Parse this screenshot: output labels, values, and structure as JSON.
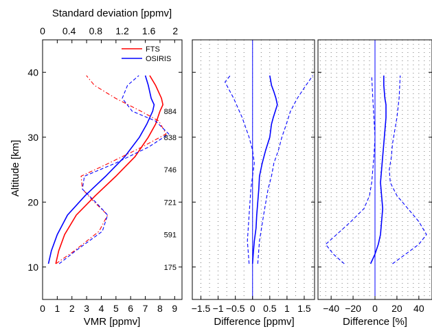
{
  "chart_data": [
    {
      "type": "line",
      "panel": "vmr",
      "xlabel": "VMR [ppmv]",
      "ylabel": "Altitude [km]",
      "top_xlabel": "Standard deviation [ppmv]",
      "xlim": [
        0,
        9.5
      ],
      "top_xlim": [
        0,
        2.1
      ],
      "ylim": [
        5,
        45
      ],
      "xticks": [
        "0",
        "1",
        "2",
        "3",
        "4",
        "5",
        "6",
        "7",
        "8",
        "9"
      ],
      "top_xticks": [
        "0",
        "0.4",
        "0.8",
        "1.2",
        "1.6",
        "2"
      ],
      "yticks": [
        "10",
        "20",
        "30",
        "40"
      ],
      "legend": {
        "placement": "top-right",
        "entries": [
          "FTS",
          "OSIRIS"
        ]
      },
      "series": [
        {
          "name": "FTS",
          "color": "#ff0000",
          "style": "solid",
          "axis": "bottom",
          "x": [
            0.9,
            1.1,
            1.5,
            2.3,
            3.6,
            5.0,
            6.3,
            7.2,
            7.7,
            8.0,
            8.2,
            8.1,
            7.7,
            7.3
          ],
          "y": [
            10.5,
            12.5,
            15,
            18,
            21,
            24,
            27,
            30,
            32,
            34,
            35,
            36,
            38,
            39.5
          ]
        },
        {
          "name": "OSIRIS",
          "color": "#0000ff",
          "style": "solid",
          "axis": "bottom",
          "x": [
            0.4,
            0.6,
            1.0,
            1.7,
            2.9,
            4.3,
            5.6,
            6.6,
            7.1,
            7.5,
            7.6,
            7.4,
            7.2,
            7.0
          ],
          "y": [
            10.5,
            12.5,
            15,
            18,
            21,
            24,
            27,
            30,
            32,
            34,
            35,
            36,
            38,
            39.5
          ]
        },
        {
          "name": "FTS",
          "color": "#ff0000",
          "style": "dashdot",
          "axis": "top",
          "x": [
            0.2,
            0.48,
            0.85,
            0.98,
            0.78,
            0.6,
            0.58,
            1.0,
            1.5,
            1.86,
            1.75,
            1.48,
            1.1,
            0.78,
            0.66
          ],
          "y": [
            10.5,
            12.5,
            15.5,
            18,
            20,
            22,
            24,
            26,
            28.5,
            30.5,
            32.5,
            34,
            36,
            38,
            39.5
          ]
        },
        {
          "name": "OSIRIS",
          "color": "#0000ff",
          "style": "dashed",
          "axis": "top",
          "x": [
            0.25,
            0.5,
            0.9,
            0.98,
            0.8,
            0.6,
            0.63,
            1.1,
            1.6,
            1.9,
            1.7,
            1.35,
            1.2,
            1.28,
            1.45
          ],
          "y": [
            10.5,
            12.5,
            15.5,
            18,
            20,
            22,
            24,
            26,
            28.5,
            30.5,
            32.5,
            34,
            36,
            38,
            39.5
          ]
        }
      ]
    },
    {
      "type": "line",
      "panel": "difference-ppmv",
      "xlabel": "Difference [ppmv]",
      "xlim": [
        -1.75,
        1.8
      ],
      "ylim": [
        5,
        45
      ],
      "xticks": [
        "−1.5",
        "−1",
        "−0.5",
        "0",
        "0.5",
        "1",
        "1.5"
      ],
      "gridlines": "vertical dotted",
      "series": [
        {
          "color": "#0000ff",
          "style": "solid",
          "x": [
            0.0,
            0.02,
            0.05,
            0.1,
            0.12,
            0.15,
            0.18,
            0.2,
            0.28,
            0.38,
            0.5,
            0.55,
            0.6,
            0.72,
            0.68,
            0.62,
            0.55,
            0.5
          ],
          "y": [
            10.5,
            12,
            14,
            16,
            18,
            20,
            22,
            24,
            26,
            28,
            30,
            32,
            33,
            35,
            36,
            37,
            38,
            39.5
          ]
        },
        {
          "color": "#0000ff",
          "style": "dashed",
          "x": [
            0.15,
            0.2,
            0.32,
            0.45,
            0.55,
            0.62,
            0.75,
            0.85,
            0.98,
            1.1,
            1.3,
            1.55,
            1.75
          ],
          "y": [
            10.5,
            14,
            18,
            22,
            24,
            26,
            28,
            30,
            32,
            34,
            36,
            38,
            39.5
          ]
        },
        {
          "color": "#0000ff",
          "style": "dashed",
          "x": [
            -0.1,
            -0.15,
            -0.1,
            -0.05,
            0.0,
            0.05,
            0.0,
            -0.1,
            -0.3,
            -0.55,
            -0.8,
            -0.65
          ],
          "y": [
            10.5,
            14,
            18,
            22,
            24,
            26,
            28,
            30,
            33,
            36,
            38.5,
            39.5
          ]
        }
      ]
    },
    {
      "type": "line",
      "panel": "difference-percent",
      "xlabel": "Difference [%]",
      "xlim": [
        -52,
        52
      ],
      "ylim": [
        5,
        45
      ],
      "xticks": [
        "−40",
        "−20",
        "0",
        "20",
        "40"
      ],
      "gridlines": "vertical dotted",
      "series": [
        {
          "color": "#0000ff",
          "style": "solid",
          "x": [
            -4,
            0,
            3,
            5,
            6,
            7,
            6,
            5,
            6,
            7,
            8,
            9,
            10,
            10,
            9,
            8,
            8
          ],
          "y": [
            10.5,
            12,
            13.5,
            15,
            17,
            19,
            21,
            23,
            25,
            27,
            29,
            31,
            33,
            35,
            36,
            38,
            39.5
          ]
        },
        {
          "color": "#0000ff",
          "style": "dashed",
          "x": [
            16,
            28,
            40,
            47,
            40,
            30,
            20,
            14,
            13,
            15,
            16,
            18,
            20,
            22,
            23
          ],
          "y": [
            10.5,
            12,
            13.5,
            15,
            17,
            19,
            21,
            23,
            25,
            27,
            29,
            31,
            33,
            36,
            39.5
          ]
        },
        {
          "color": "#0000ff",
          "style": "dashed",
          "x": [
            -28,
            -38,
            -45,
            -35,
            -22,
            -10,
            -5,
            -3,
            -2,
            -1,
            0,
            -1,
            -2,
            -3
          ],
          "y": [
            10.5,
            12,
            13.5,
            15,
            17,
            19,
            21,
            23,
            25,
            27,
            30,
            33,
            36,
            39.5
          ]
        }
      ]
    }
  ],
  "counts": [
    {
      "label": "884",
      "y": 34
    },
    {
      "label": "838",
      "y": 30
    },
    {
      "label": "746",
      "y": 25
    },
    {
      "label": "721",
      "y": 20
    },
    {
      "label": "591",
      "y": 15
    },
    {
      "label": "175",
      "y": 10
    }
  ]
}
